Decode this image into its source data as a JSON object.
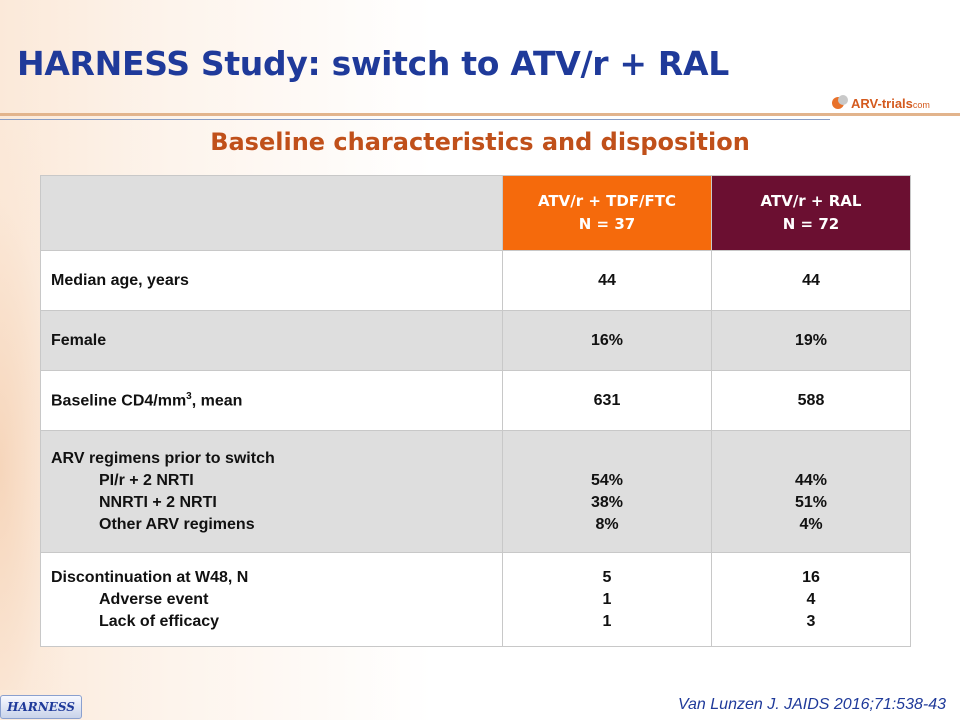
{
  "title": "HARNESS Study: switch to ATV/r + RAL",
  "logo": {
    "main": "ARV-trials",
    "suffix": "com"
  },
  "subtitle": "Baseline characteristics and disposition",
  "table": {
    "columns": [
      {
        "line1": "ATV/r + TDF/FTC",
        "line2": "N = 37"
      },
      {
        "line1": "ATV/r + RAL",
        "line2": "N = 72"
      }
    ],
    "rows": {
      "age": {
        "label": "Median age, years",
        "v1": "44",
        "v2": "44"
      },
      "female": {
        "label": "Female",
        "v1": "16%",
        "v2": "19%"
      },
      "cd4": {
        "label_pre": "Baseline CD4/mm",
        "label_sup": "3",
        "label_post": ", mean",
        "v1": "631",
        "v2": "588"
      },
      "arv": {
        "label": "ARV regimens prior to switch",
        "items": [
          {
            "label": "PI/r + 2 NRTI",
            "v1": "54%",
            "v2": "44%"
          },
          {
            "label": "NNRTI + 2 NRTI",
            "v1": "38%",
            "v2": "51%"
          },
          {
            "label": "Other ARV regimens",
            "v1": "8%",
            "v2": "4%"
          }
        ]
      },
      "disc": {
        "label": "Discontinuation at W48, N",
        "v1": "5",
        "v2": "16",
        "items": [
          {
            "label": "Adverse event",
            "v1": "1",
            "v2": "4"
          },
          {
            "label": "Lack of efficacy",
            "v1": "1",
            "v2": "3"
          }
        ]
      }
    }
  },
  "footer": {
    "tag": "HARNESS",
    "citation": "Van Lunzen J. JAIDS 2016;71:538-43"
  },
  "colors": {
    "title": "#1f3a9a",
    "subtitle": "#c0501a",
    "arm1_header": "#f56a0c",
    "arm2_header": "#6b0f31",
    "row_shade": "#dedede"
  }
}
